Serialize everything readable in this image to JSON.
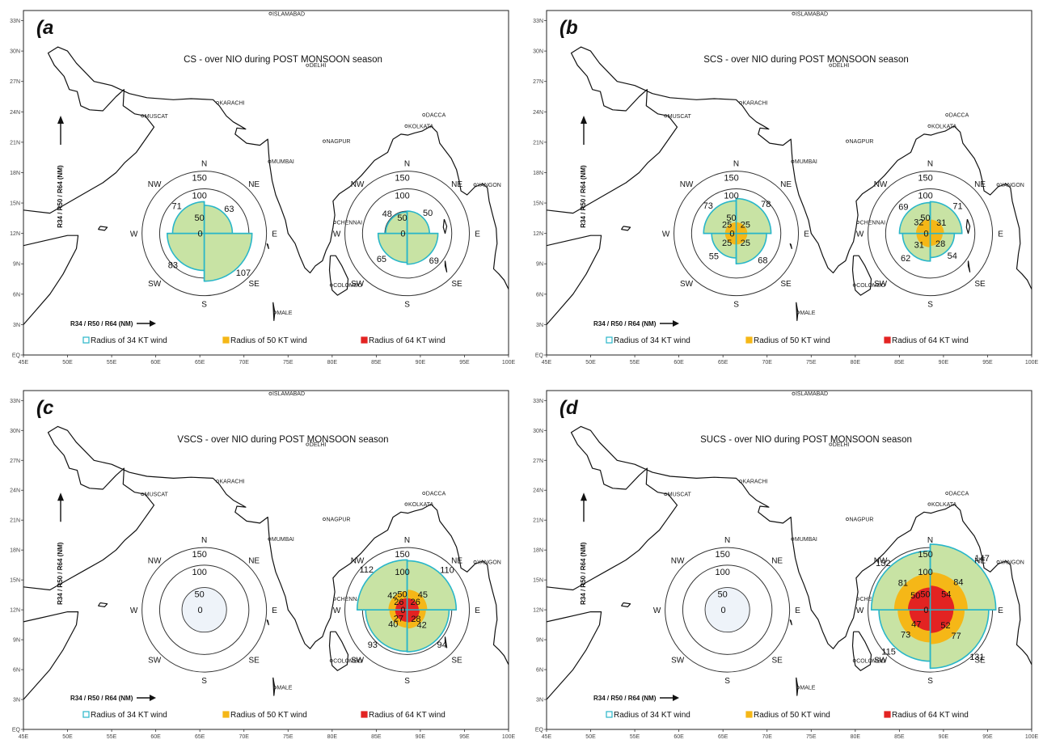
{
  "panels": [
    {
      "label": "(a",
      "title": "CS -  over NIO  during    POST MONSOON season",
      "center": {
        "lon": 65.5,
        "lat": 12
      },
      "center2": {
        "lon": 88.5,
        "lat": 12
      },
      "storm1": {
        "r34": {
          "NE": 63,
          "SE": 107,
          "SW": 83,
          "NW": 71
        },
        "r50": null,
        "r64": null,
        "labels34": {
          "NE": "63",
          "SE": "107",
          "SW": "83",
          "NW": "71"
        },
        "labels50": null,
        "labels64": null
      },
      "storm2": {
        "r34": {
          "NE": 50,
          "SE": 69,
          "SW": 65,
          "NW": 48
        },
        "r50": null,
        "r64": null,
        "labels34": {
          "NE": "50",
          "SE": "69",
          "SW": "65",
          "NW": "48"
        },
        "labels50": null,
        "labels64": null
      }
    },
    {
      "label": "(b",
      "title": "SCS -  over NIO  during    POST MONSOON season",
      "center": {
        "lon": 66.5,
        "lat": 12
      },
      "center2": {
        "lon": 88.5,
        "lat": 12
      },
      "storm1": {
        "r34": {
          "NE": 78,
          "SE": 68,
          "SW": 55,
          "NW": 73
        },
        "r50": {
          "NE": 25,
          "SE": 25,
          "SW": 25,
          "NW": 25
        },
        "r64": null,
        "labels34": {
          "NE": "78",
          "SE": "68",
          "SW": "55",
          "NW": "73"
        },
        "labels50": {
          "NE": "25",
          "SE": "25",
          "SW": "25",
          "NW": "25"
        },
        "labels64": null
      },
      "storm2": {
        "r34": {
          "NE": 71,
          "SE": 54,
          "SW": 62,
          "NW": 69
        },
        "r50": {
          "NE": 31,
          "SE": 28,
          "SW": 31,
          "NW": 32
        },
        "r64": null,
        "labels34": {
          "NE": "71",
          "SE": "54",
          "SW": "62",
          "NW": "69"
        },
        "labels50": {
          "NE": "31",
          "SE": "28",
          "SW": "31",
          "NW": "32"
        },
        "labels64": null
      }
    },
    {
      "label": "(c",
      "title": "VSCS -  over NIO  during    POST MONSOON season",
      "center": {
        "lon": 65.5,
        "lat": 12
      },
      "center2": {
        "lon": 88.5,
        "lat": 12
      },
      "storm1": {
        "r34": null,
        "r50": null,
        "r64": null,
        "labels34": null,
        "labels50": null,
        "labels64": null
      },
      "storm2": {
        "r34": {
          "NE": 110,
          "SE": 94,
          "SW": 93,
          "NW": 112
        },
        "r50": {
          "NE": 45,
          "SE": 42,
          "SW": 40,
          "NW": 42
        },
        "r64": {
          "NE": 26,
          "SE": 28,
          "SW": 27,
          "NW": 26
        },
        "labels34": {
          "NE": "110",
          "SE": "94",
          "SW": "93",
          "NW": "112"
        },
        "labels50": {
          "NE": "45",
          "SE": "42",
          "SW": "40",
          "NW": "42"
        },
        "labels64": {
          "NE": "26",
          "SE": "28",
          "SW": "27",
          "NW": "26"
        }
      }
    },
    {
      "label": "(d",
      "title": "SUCS -  over NIO  during    POST MONSOON season",
      "center": {
        "lon": 65.5,
        "lat": 12
      },
      "center2": {
        "lon": 88.5,
        "lat": 12
      },
      "storm1": {
        "r34": null,
        "r50": null,
        "r64": null,
        "labels34": null,
        "labels50": null,
        "labels64": null
      },
      "storm2": {
        "r34": {
          "NE": 147,
          "SE": 131,
          "SW": 115,
          "NW": 132
        },
        "r50": {
          "NE": 84,
          "SE": 77,
          "SW": 73,
          "NW": 81
        },
        "r64": {
          "NE": 54,
          "SE": 52,
          "SW": 47,
          "NW": 50
        },
        "labels34": {
          "NE": "147",
          "SE": "131",
          "SW": "115",
          "NW": "132"
        },
        "labels50": {
          "NE": "84",
          "SE": "77",
          "SW": "73",
          "NW": "81"
        },
        "labels64": {
          "NE": "54",
          "SE": "52",
          "SW": "47",
          "NW": "50"
        }
      }
    }
  ],
  "ring_labels": [
    "50",
    "100",
    "150"
  ],
  "center_label": "0",
  "compass": {
    "N": "N",
    "NE": "NE",
    "E": "E",
    "SE": "SE",
    "S": "S",
    "SW": "SW",
    "W": "W",
    "NW": "NW"
  },
  "lat_ticks": [
    "EQ",
    "3N",
    "6N",
    "9N",
    "12N",
    "15N",
    "18N",
    "21N",
    "24N",
    "27N",
    "30N",
    "33N"
  ],
  "lon_ticks": [
    "45E",
    "50E",
    "55E",
    "60E",
    "65E",
    "70E",
    "75E",
    "80E",
    "85E",
    "90E",
    "95E",
    "100E"
  ],
  "cities": [
    {
      "name": "ISLAMABAD",
      "lon": 73.0,
      "lat": 33.7
    },
    {
      "name": "DELHI",
      "lon": 77.2,
      "lat": 28.6
    },
    {
      "name": "KARACHI",
      "lon": 67.0,
      "lat": 24.9
    },
    {
      "name": "MUSCAT",
      "lon": 58.5,
      "lat": 23.6
    },
    {
      "name": "NAGPUR",
      "lon": 79.1,
      "lat": 21.1
    },
    {
      "name": "MUMBAI",
      "lon": 72.9,
      "lat": 19.1
    },
    {
      "name": "DACCA",
      "lon": 90.4,
      "lat": 23.7
    },
    {
      "name": "KOLKATA",
      "lon": 88.4,
      "lat": 22.6
    },
    {
      "name": "YANGON",
      "lon": 96.2,
      "lat": 16.8
    },
    {
      "name": "CHENNAI",
      "lon": 80.3,
      "lat": 13.1
    },
    {
      "name": "COLOMBO",
      "lon": 79.9,
      "lat": 6.9
    },
    {
      "name": "MALE",
      "lon": 73.5,
      "lat": 4.2
    }
  ],
  "legend": {
    "r34": "Radius of 34 KT wind",
    "r50": "Radius of 50 KT wind",
    "r64": "Radius of 64 KT wind",
    "arrow_label": "R34 / R50 / R64 (NM)",
    "vertical_label": "R34 / R50 / R64 (NM)"
  },
  "colors": {
    "r34_fill": "#c8e3a4",
    "r34_edge": "#29b6c9",
    "r50": "#f5b717",
    "r64": "#e32322"
  }
}
